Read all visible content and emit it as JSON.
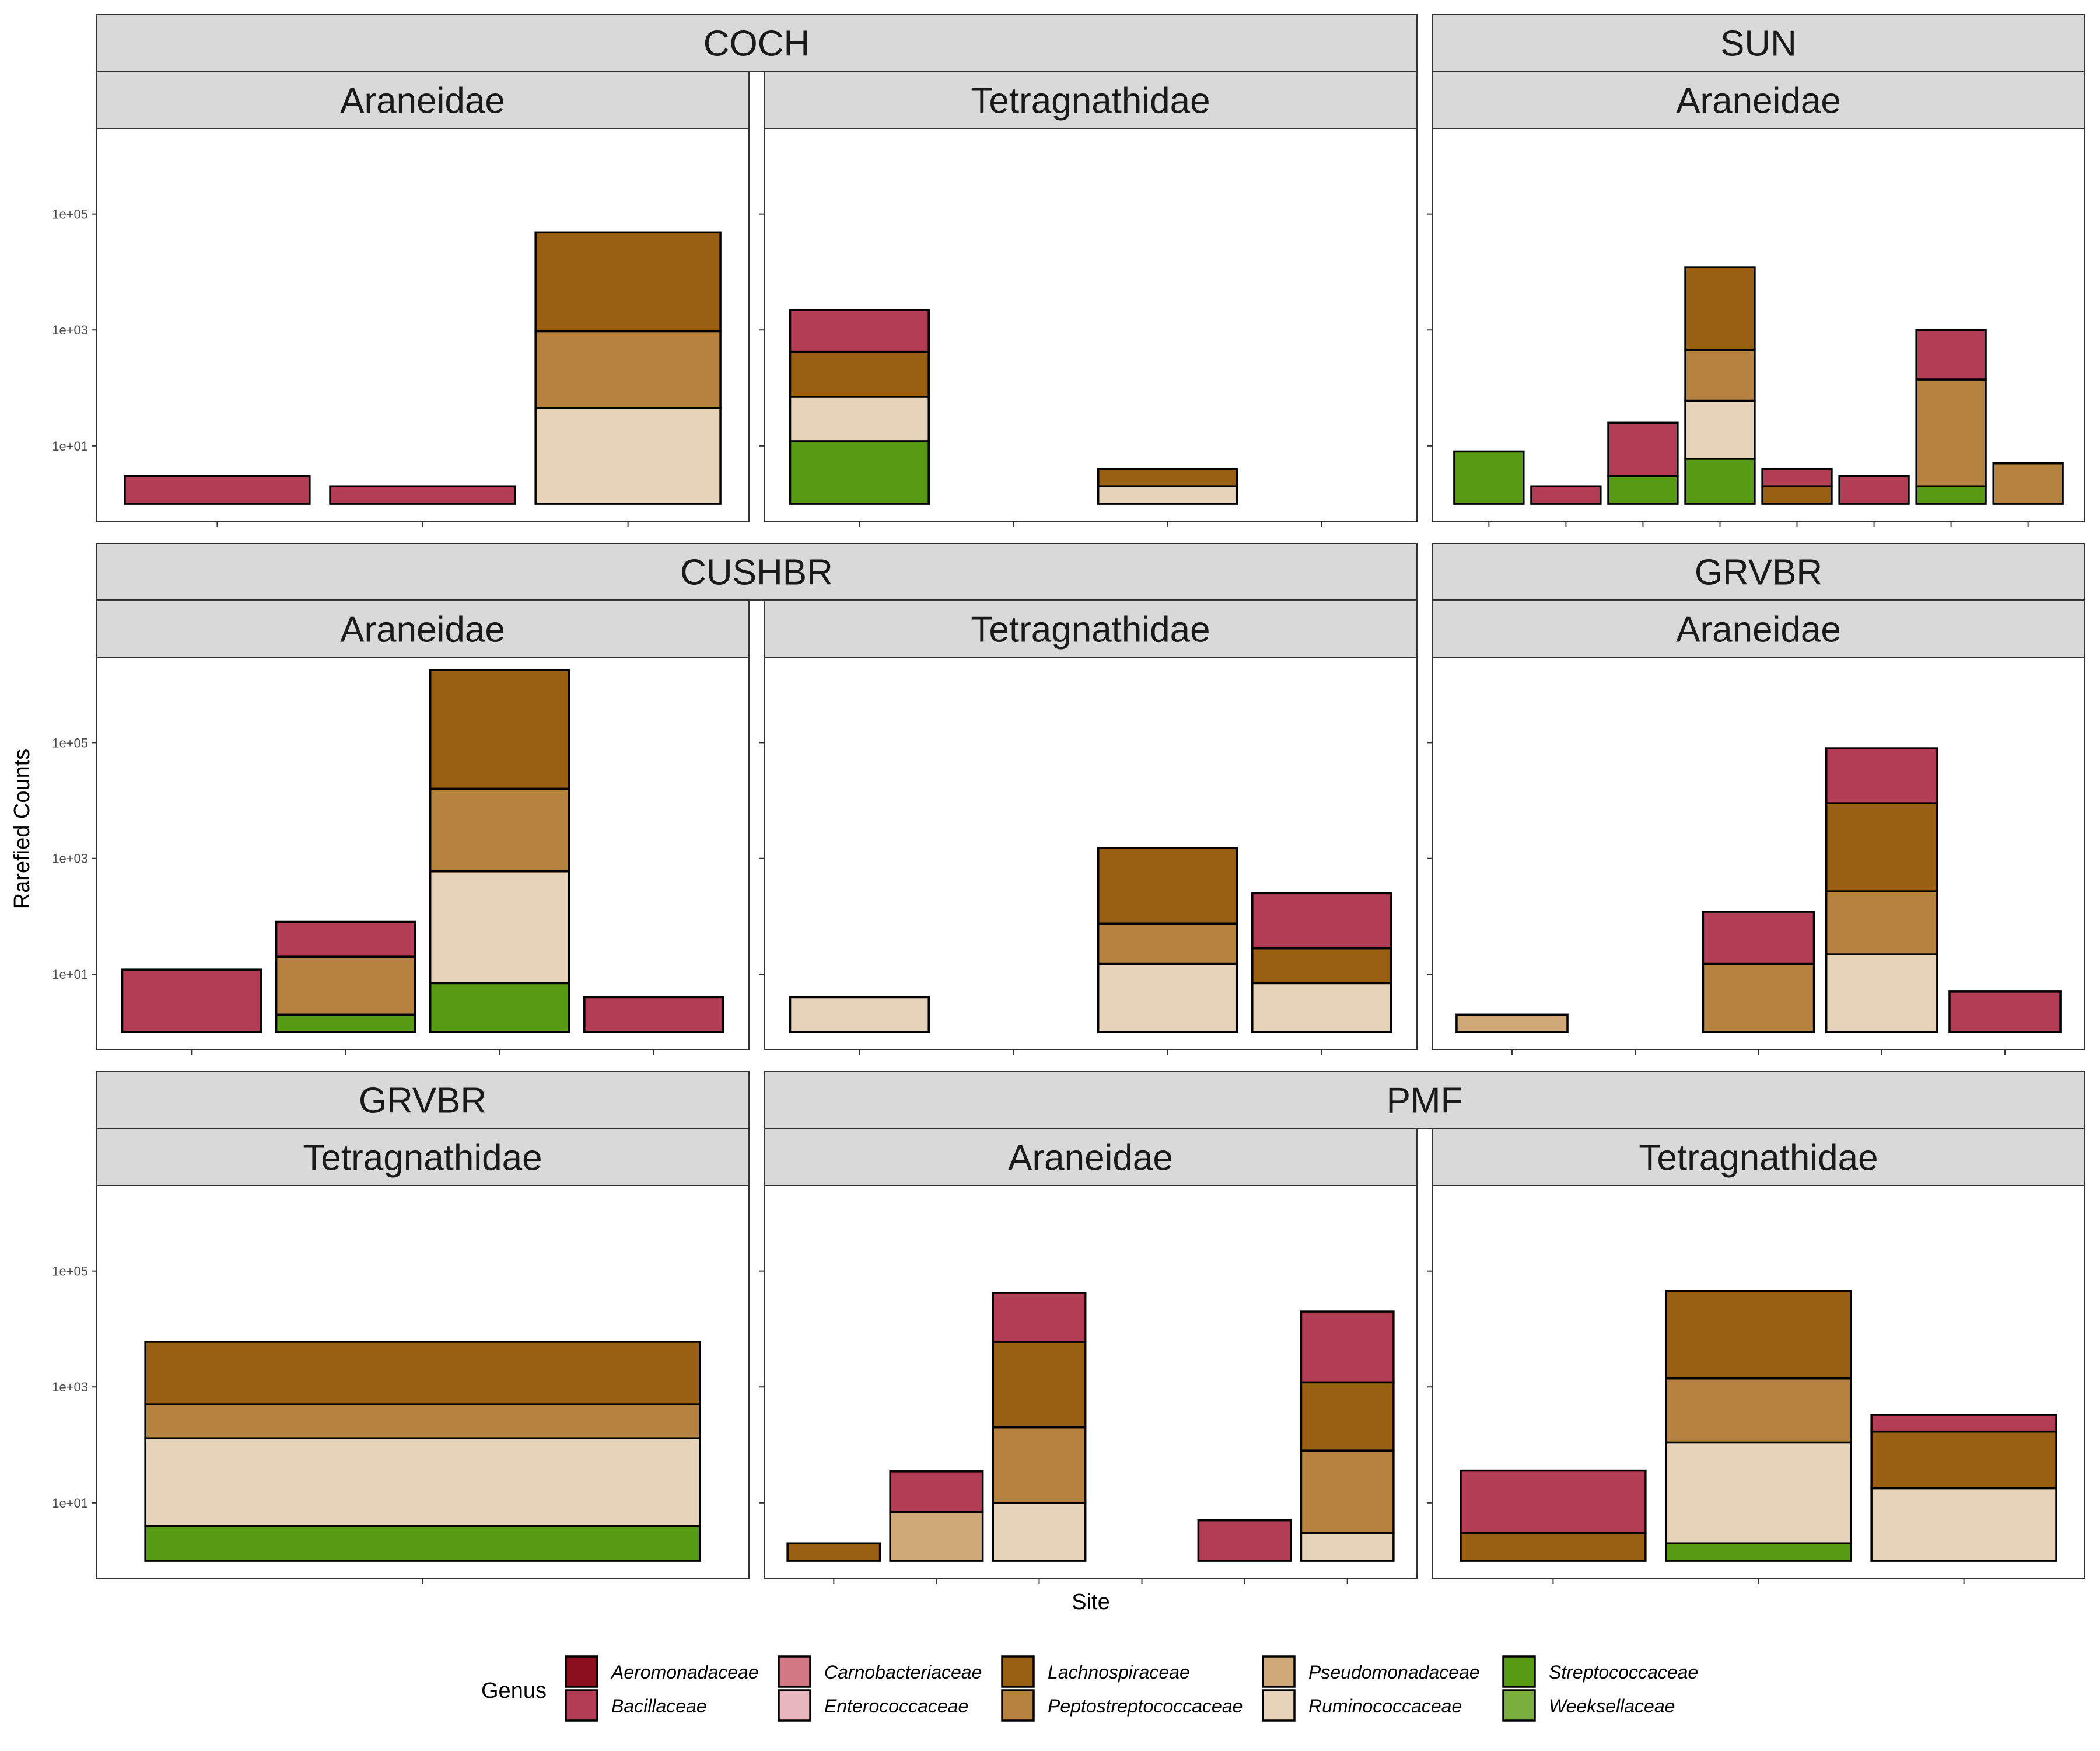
{
  "chart_data": {
    "type": "bar",
    "stacked": true,
    "y_scale": "log10",
    "ylim": [
      0.5,
      3000000
    ],
    "y_ticks": [
      10,
      1000,
      100000
    ],
    "y_tick_labels": [
      "1e+01",
      "1e+03",
      "1e+05"
    ],
    "xlabel": "Site",
    "ylabel": "Rarefied Counts",
    "grid": false,
    "legend": {
      "title": "Genus",
      "position": "bottom",
      "items": [
        {
          "name": "Aeromonadaceae",
          "color": "#8B0F1F"
        },
        {
          "name": "Bacillaceae",
          "color": "#B33D54"
        },
        {
          "name": "Carnobacteriaceae",
          "color": "#D27885"
        },
        {
          "name": "Enterococcaceae",
          "color": "#E8B7BE"
        },
        {
          "name": "Lachnospiraceae",
          "color": "#995F12"
        },
        {
          "name": "Peptostreptococcaceae",
          "color": "#B58240"
        },
        {
          "name": "Pseudomonadaceae",
          "color": "#D0A979"
        },
        {
          "name": "Ruminococcaceae",
          "color": "#E7D3B9"
        },
        {
          "name": "Streptococcaceae",
          "color": "#579A13"
        },
        {
          "name": "Weeksellaceae",
          "color": "#7AAE3E"
        }
      ]
    },
    "panels": [
      {
        "site": "COCH",
        "family": "Araneidae",
        "bars": [
          {
            "segments": [
              {
                "genus": "Bacillaceae",
                "top": 3
              }
            ]
          },
          {
            "segments": [
              {
                "genus": "Bacillaceae",
                "top": 2
              }
            ]
          },
          {
            "segments": [
              {
                "genus": "Ruminococcaceae",
                "top": 45
              },
              {
                "genus": "Peptostreptococcaceae",
                "top": 950
              },
              {
                "genus": "Lachnospiraceae",
                "top": 48000
              }
            ]
          }
        ]
      },
      {
        "site": "COCH",
        "family": "Tetragnathidae",
        "bars": [
          {
            "segments": [
              {
                "genus": "Streptococcaceae",
                "top": 12
              },
              {
                "genus": "Ruminococcaceae",
                "top": 70
              },
              {
                "genus": "Lachnospiraceae",
                "top": 420
              },
              {
                "genus": "Bacillaceae",
                "top": 2200
              }
            ]
          },
          {
            "segments": [
              {
                "genus": "Bacillaceae",
                "top": 1
              }
            ]
          },
          {
            "segments": [
              {
                "genus": "Ruminococcaceae",
                "top": 2
              },
              {
                "genus": "Lachnospiraceae",
                "top": 4
              }
            ]
          },
          {
            "segments": [
              {
                "genus": "Bacillaceae",
                "top": 1
              }
            ]
          }
        ]
      },
      {
        "site": "SUN",
        "family": "Araneidae",
        "bars": [
          {
            "segments": [
              {
                "genus": "Streptococcaceae",
                "top": 8
              }
            ]
          },
          {
            "segments": [
              {
                "genus": "Bacillaceae",
                "top": 2
              }
            ]
          },
          {
            "segments": [
              {
                "genus": "Streptococcaceae",
                "top": 3
              },
              {
                "genus": "Bacillaceae",
                "top": 25
              }
            ]
          },
          {
            "segments": [
              {
                "genus": "Streptococcaceae",
                "top": 6
              },
              {
                "genus": "Ruminococcaceae",
                "top": 60
              },
              {
                "genus": "Peptostreptococcaceae",
                "top": 450
              },
              {
                "genus": "Lachnospiraceae",
                "top": 12000
              }
            ]
          },
          {
            "segments": [
              {
                "genus": "Lachnospiraceae",
                "top": 2
              },
              {
                "genus": "Bacillaceae",
                "top": 4
              }
            ]
          },
          {
            "segments": [
              {
                "genus": "Bacillaceae",
                "top": 3
              }
            ]
          },
          {
            "segments": [
              {
                "genus": "Streptococcaceae",
                "top": 2
              },
              {
                "genus": "Peptostreptococcaceae",
                "top": 140
              },
              {
                "genus": "Bacillaceae",
                "top": 1000
              }
            ]
          },
          {
            "segments": [
              {
                "genus": "Peptostreptococcaceae",
                "top": 5
              }
            ]
          }
        ]
      },
      {
        "site": "CUSHBR",
        "family": "Araneidae",
        "bars": [
          {
            "segments": [
              {
                "genus": "Bacillaceae",
                "top": 12
              }
            ]
          },
          {
            "segments": [
              {
                "genus": "Streptococcaceae",
                "top": 2
              },
              {
                "genus": "Peptostreptococcaceae",
                "top": 20
              },
              {
                "genus": "Bacillaceae",
                "top": 80
              }
            ]
          },
          {
            "segments": [
              {
                "genus": "Streptococcaceae",
                "top": 7
              },
              {
                "genus": "Ruminococcaceae",
                "top": 600
              },
              {
                "genus": "Peptostreptococcaceae",
                "top": 16000
              },
              {
                "genus": "Lachnospiraceae",
                "top": 1800000
              }
            ]
          },
          {
            "segments": [
              {
                "genus": "Bacillaceae",
                "top": 4
              }
            ]
          }
        ]
      },
      {
        "site": "CUSHBR",
        "family": "Tetragnathidae",
        "bars": [
          {
            "segments": [
              {
                "genus": "Ruminococcaceae",
                "top": 4
              }
            ]
          },
          {
            "segments": [
              {
                "genus": "Bacillaceae",
                "top": 1
              }
            ]
          },
          {
            "segments": [
              {
                "genus": "Ruminococcaceae",
                "top": 15
              },
              {
                "genus": "Peptostreptococcaceae",
                "top": 75
              },
              {
                "genus": "Lachnospiraceae",
                "top": 1500
              }
            ]
          },
          {
            "segments": [
              {
                "genus": "Ruminococcaceae",
                "top": 7
              },
              {
                "genus": "Lachnospiraceae",
                "top": 28
              },
              {
                "genus": "Bacillaceae",
                "top": 250
              }
            ]
          }
        ]
      },
      {
        "site": "GRVBR",
        "family": "Araneidae",
        "bars": [
          {
            "segments": [
              {
                "genus": "Pseudomonadaceae",
                "top": 2
              }
            ]
          },
          {
            "segments": [
              {
                "genus": "Bacillaceae",
                "top": 1
              }
            ]
          },
          {
            "segments": [
              {
                "genus": "Peptostreptococcaceae",
                "top": 15
              },
              {
                "genus": "Bacillaceae",
                "top": 120
              }
            ]
          },
          {
            "segments": [
              {
                "genus": "Ruminococcaceae",
                "top": 22
              },
              {
                "genus": "Peptostreptococcaceae",
                "top": 270
              },
              {
                "genus": "Lachnospiraceae",
                "top": 9000
              },
              {
                "genus": "Bacillaceae",
                "top": 80000
              }
            ]
          },
          {
            "segments": [
              {
                "genus": "Bacillaceae",
                "top": 5
              }
            ]
          }
        ]
      },
      {
        "site": "GRVBR",
        "family": "Tetragnathidae",
        "bars": [
          {
            "segments": [
              {
                "genus": "Streptococcaceae",
                "top": 4
              },
              {
                "genus": "Ruminococcaceae",
                "top": 130
              },
              {
                "genus": "Peptostreptococcaceae",
                "top": 500
              },
              {
                "genus": "Lachnospiraceae",
                "top": 6000
              }
            ]
          }
        ]
      },
      {
        "site": "PMF",
        "family": "Araneidae",
        "bars": [
          {
            "segments": [
              {
                "genus": "Lachnospiraceae",
                "top": 2
              }
            ]
          },
          {
            "segments": [
              {
                "genus": "Pseudomonadaceae",
                "top": 7
              },
              {
                "genus": "Bacillaceae",
                "top": 35
              }
            ]
          },
          {
            "segments": [
              {
                "genus": "Ruminococcaceae",
                "top": 10
              },
              {
                "genus": "Peptostreptococcaceae",
                "top": 200
              },
              {
                "genus": "Lachnospiraceae",
                "top": 6000
              },
              {
                "genus": "Bacillaceae",
                "top": 42000
              }
            ]
          },
          {
            "segments": [
              {
                "genus": "Bacillaceae",
                "top": 1
              }
            ]
          },
          {
            "segments": [
              {
                "genus": "Bacillaceae",
                "top": 5
              }
            ]
          },
          {
            "segments": [
              {
                "genus": "Ruminococcaceae",
                "top": 3
              },
              {
                "genus": "Peptostreptococcaceae",
                "top": 80
              },
              {
                "genus": "Lachnospiraceae",
                "top": 1200
              },
              {
                "genus": "Bacillaceae",
                "top": 20000
              }
            ]
          }
        ]
      },
      {
        "site": "PMF",
        "family": "Tetragnathidae",
        "bars": [
          {
            "segments": [
              {
                "genus": "Lachnospiraceae",
                "top": 3
              },
              {
                "genus": "Bacillaceae",
                "top": 36
              }
            ]
          },
          {
            "segments": [
              {
                "genus": "Streptococcaceae",
                "top": 2
              },
              {
                "genus": "Ruminococcaceae",
                "top": 110
              },
              {
                "genus": "Peptostreptococcaceae",
                "top": 1400
              },
              {
                "genus": "Lachnospiraceae",
                "top": 45000
              }
            ]
          },
          {
            "segments": [
              {
                "genus": "Ruminococcaceae",
                "top": 18
              },
              {
                "genus": "Lachnospiraceae",
                "top": 170
              },
              {
                "genus": "Bacillaceae",
                "top": 330
              }
            ]
          }
        ]
      }
    ]
  }
}
